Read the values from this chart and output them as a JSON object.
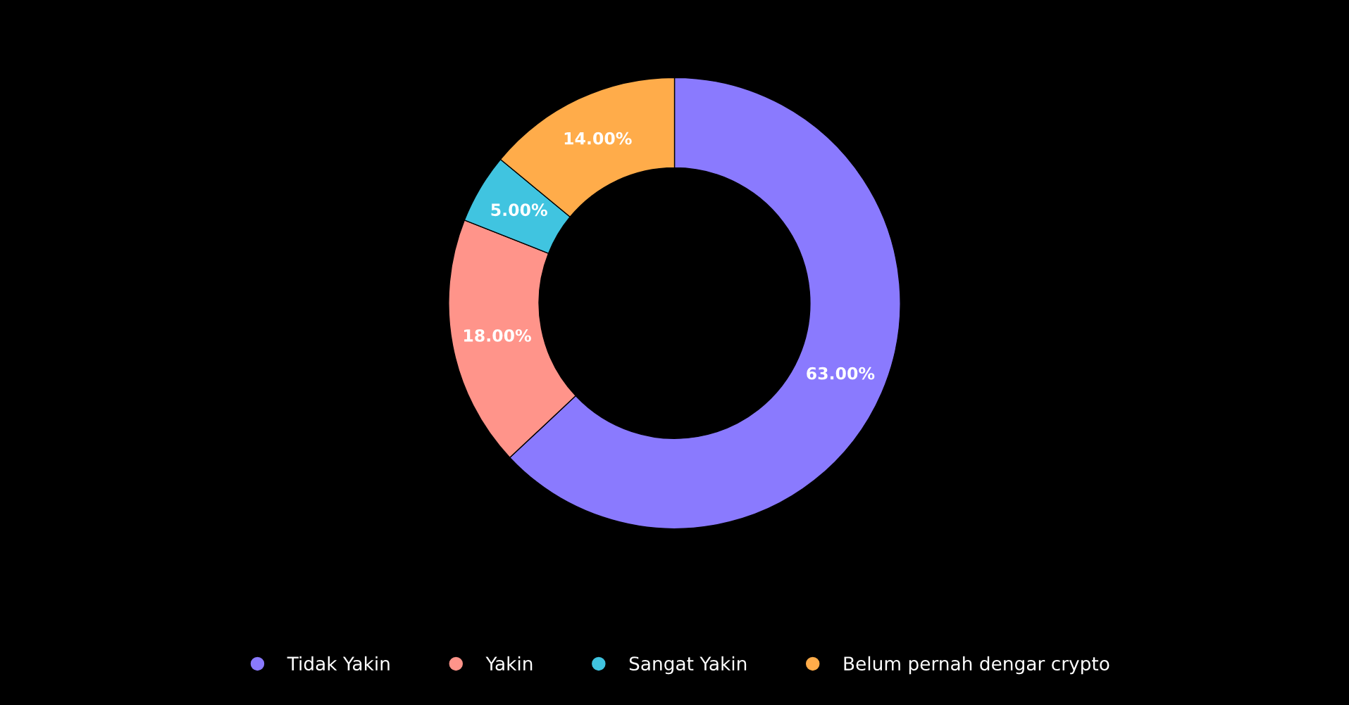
{
  "chart_data": {
    "type": "donut",
    "categories": [
      "Tidak Yakin",
      "Yakin",
      "Sangat Yakin",
      "Belum pernah dengar crypto"
    ],
    "values": [
      63,
      18,
      5,
      14
    ],
    "colors": [
      "#8a7afe",
      "#ff948a",
      "#40c4e0",
      "#ffac4a"
    ],
    "value_labels": [
      "63.00%",
      "18.00%",
      "5.00%",
      "14.00%"
    ],
    "legend": "bottom"
  }
}
